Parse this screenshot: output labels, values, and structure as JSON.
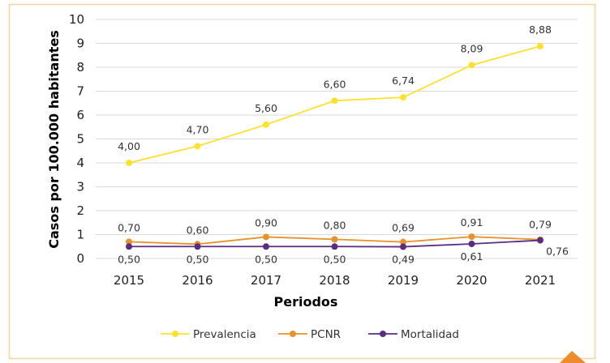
{
  "chart_data": {
    "type": "line",
    "title": "",
    "xlabel": "Periodos",
    "ylabel": "Casos por 100.000 habitantes",
    "categories": [
      "2015",
      "2016",
      "2017",
      "2018",
      "2019",
      "2020",
      "2021"
    ],
    "ylim": [
      0,
      10
    ],
    "yticks": [
      "0",
      "1",
      "2",
      "3",
      "4",
      "5",
      "6",
      "7",
      "8",
      "9",
      "10"
    ],
    "grid": true,
    "legend_position": "bottom",
    "series": [
      {
        "name": "Prevalencia",
        "color": "#FDE12D",
        "values": [
          4.0,
          4.7,
          5.6,
          6.6,
          6.74,
          8.09,
          8.88
        ],
        "labels": [
          "4,00",
          "4,70",
          "5,60",
          "6,60",
          "6,74",
          "8,09",
          "8,88"
        ]
      },
      {
        "name": "PCNR",
        "color": "#E8922A",
        "values": [
          0.7,
          0.6,
          0.9,
          0.8,
          0.69,
          0.91,
          0.79
        ],
        "labels": [
          "0,70",
          "0,60",
          "0,90",
          "0,80",
          "0,69",
          "0,91",
          "0,79"
        ]
      },
      {
        "name": "Mortalidad",
        "color": "#5A2D82",
        "values": [
          0.5,
          0.5,
          0.5,
          0.5,
          0.49,
          0.61,
          0.76
        ],
        "labels": [
          "0,50",
          "0,50",
          "0,50",
          "0,50",
          "0,49",
          "0,61",
          "0,76"
        ]
      }
    ],
    "colors": {
      "axis_title": "#E8922A",
      "frame": "#F5D49A",
      "grid": "#D9D9D9"
    }
  }
}
